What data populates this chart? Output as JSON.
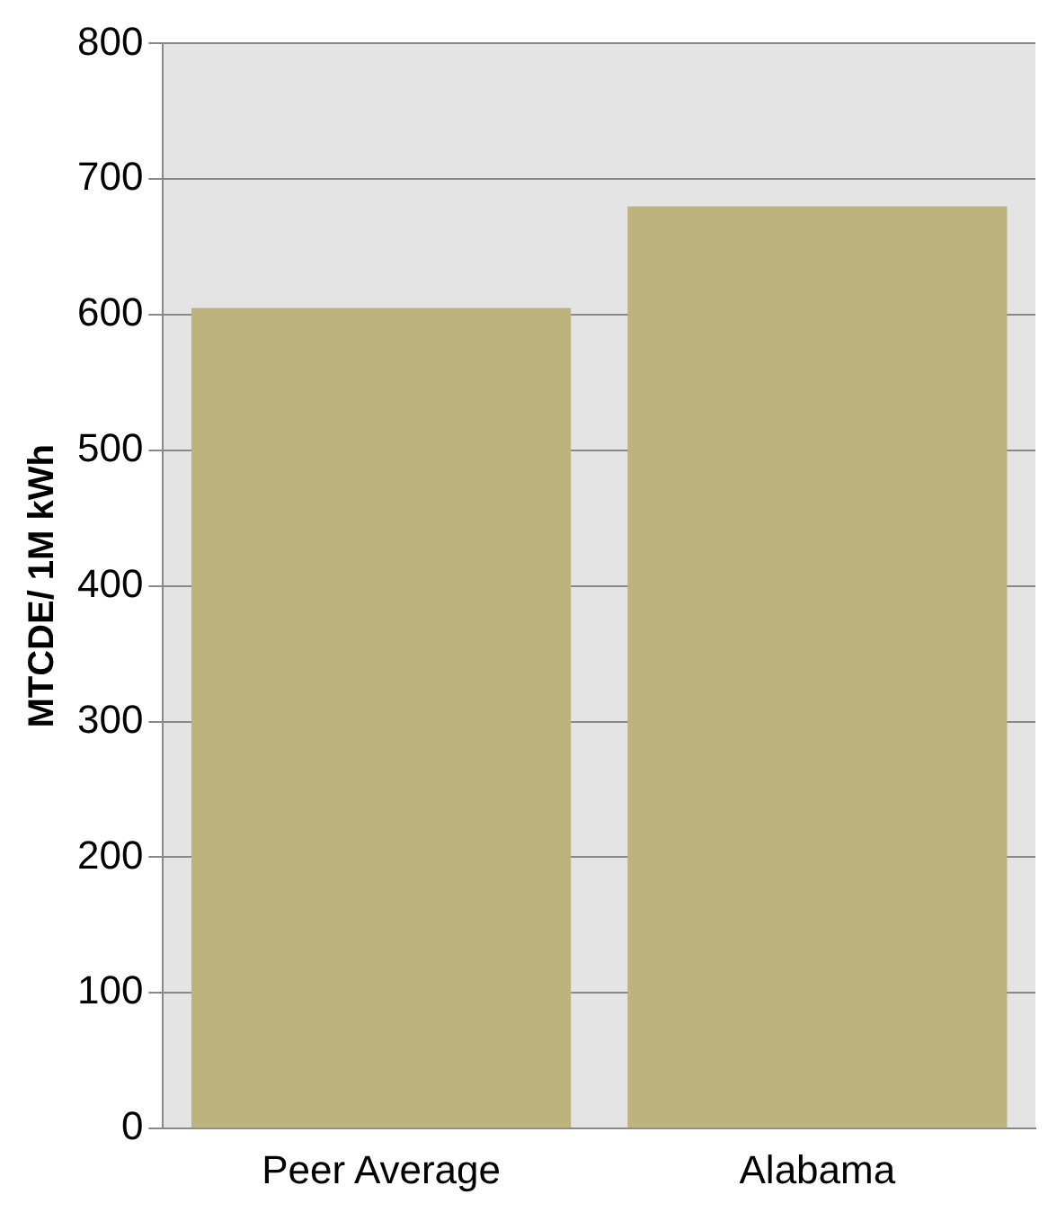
{
  "chart_data": {
    "type": "bar",
    "ylabel": "MTCDE/ 1M kWh",
    "categories": [
      "Peer Average",
      "Alabama"
    ],
    "values": [
      605,
      680
    ],
    "color": "#bdb37c",
    "ylim": [
      0,
      800
    ],
    "yticks": [
      0,
      100,
      200,
      300,
      400,
      500,
      600,
      700,
      800
    ],
    "grid": "y",
    "legend": false
  }
}
